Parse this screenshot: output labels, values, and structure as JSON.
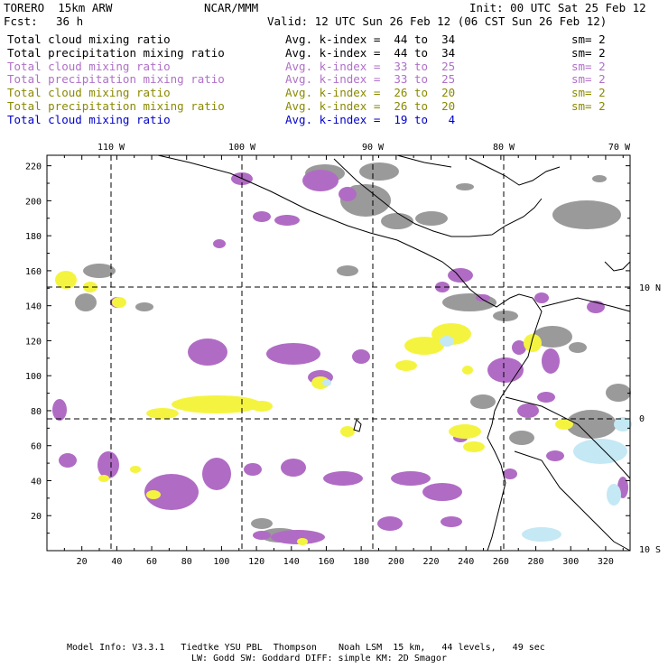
{
  "header": {
    "title_left": "TORERO  15km ARW",
    "title_center": "NCAR/MMM",
    "init": "Init: 00 UTC Sat 25 Feb 12",
    "fcst_label": "Fcst:",
    "fcst_value": "36 h",
    "valid": "Valid: 12 UTC Sun 26 Feb 12 (06 CST Sun 26 Feb 12)"
  },
  "legend": [
    {
      "field": "Total cloud mixing ratio",
      "kindex": "Avg. k-index =  44 to  34",
      "sm": "sm= 2",
      "color": "#000000"
    },
    {
      "field": "Total precipitation mixing ratio",
      "kindex": "Avg. k-index =  44 to  34",
      "sm": "sm= 2",
      "color": "#000000"
    },
    {
      "field": "Total cloud mixing ratio",
      "kindex": "Avg. k-index =  33 to  25",
      "sm": "sm= 2",
      "color": "#b070c8"
    },
    {
      "field": "Total precipitation mixing ratio",
      "kindex": "Avg. k-index =  33 to  25",
      "sm": "sm= 2",
      "color": "#b070c8"
    },
    {
      "field": "Total cloud mixing ratio",
      "kindex": "Avg. k-index =  26 to  20",
      "sm": "sm= 2",
      "color": "#8a8a00"
    },
    {
      "field": "Total precipitation mixing ratio",
      "kindex": "Avg. k-index =  26 to  20",
      "sm": "sm= 2",
      "color": "#8a8a00"
    },
    {
      "field": "Total cloud mixing ratio",
      "kindex": "Avg. k-index =  19 to   4",
      "sm": "",
      "color": "#0000cc"
    }
  ],
  "map": {
    "lon_labels": [
      "110 W",
      "100 W",
      "90 W",
      "80 W",
      "70 W"
    ],
    "lat_labels": [
      "10 N",
      "0",
      "10 S"
    ],
    "x_ticks": [
      "20",
      "40",
      "60",
      "80",
      "100",
      "120",
      "140",
      "160",
      "180",
      "200",
      "220",
      "240",
      "260",
      "280",
      "300",
      "320"
    ],
    "y_ticks": [
      "20",
      "40",
      "60",
      "80",
      "100",
      "120",
      "140",
      "160",
      "180",
      "200",
      "220"
    ],
    "colors": {
      "gray": "#9a9a9a",
      "purple": "#b06cc4",
      "yellow": "#f4f440",
      "lightblue": "#c4e8f4"
    }
  },
  "footer": {
    "line1": "Model Info: V3.3.1   Tiedtke YSU PBL  Thompson    Noah LSM  15 km,   44 levels,   49 sec",
    "line2": "LW: Godd SW: Goddard DIFF: simple KM: 2D Smagor"
  }
}
